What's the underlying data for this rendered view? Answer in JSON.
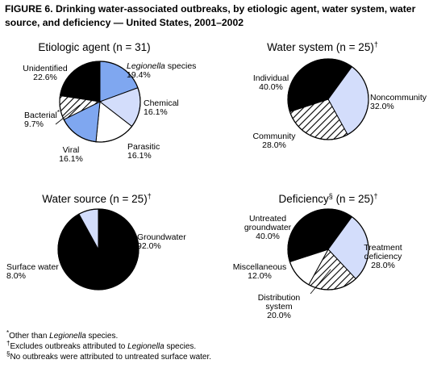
{
  "figure_title": "FIGURE 6. Drinking water-associated outbreaks, by etiologic agent, water system, water source, and deficiency — United States, 2001–2002",
  "colors": {
    "black": "#000000",
    "light_blue": "#d3ddfb",
    "medium_blue": "#7fa7f0",
    "white": "#ffffff",
    "hatch": "#000000"
  },
  "chart_data": [
    {
      "type": "pie",
      "title": "Etiologic agent (n = 31)",
      "title_mark": "",
      "slices": [
        {
          "name": "Legionella species",
          "value": 19.4,
          "label_italic": "Legionella",
          "label_rest": " species",
          "pct": "19.4%",
          "fill": "medium_blue"
        },
        {
          "name": "Chemical",
          "value": 16.1,
          "label": "Chemical",
          "pct": "16.1%",
          "fill": "light_blue"
        },
        {
          "name": "Parasitic",
          "value": 16.1,
          "label": "Parasitic",
          "pct": "16.1%",
          "fill": "white"
        },
        {
          "name": "Viral",
          "value": 16.1,
          "label": "Viral",
          "pct": "16.1%",
          "fill": "medium_blue"
        },
        {
          "name": "Bacterial",
          "value": 9.7,
          "label": "Bacterial",
          "mark": "*",
          "pct": "9.7%",
          "fill": "hatch"
        },
        {
          "name": "Unidentified",
          "value": 22.6,
          "label": "Unidentified",
          "pct": "22.6%",
          "fill": "black"
        }
      ]
    },
    {
      "type": "pie",
      "title": "Water system (n = 25)",
      "title_mark": "†",
      "slices": [
        {
          "name": "Noncommunity",
          "value": 32.0,
          "label": "Noncommunity",
          "pct": "32.0%",
          "fill": "light_blue"
        },
        {
          "name": "Community",
          "value": 28.0,
          "label": "Community",
          "pct": "28.0%",
          "fill": "hatch"
        },
        {
          "name": "Individual",
          "value": 40.0,
          "label": "Individual",
          "pct": "40.0%",
          "fill": "black"
        }
      ]
    },
    {
      "type": "pie",
      "title": "Water source (n = 25)",
      "title_mark": "†",
      "slices": [
        {
          "name": "Groundwater",
          "value": 92.0,
          "label": "Groundwater",
          "pct": "92.0%",
          "fill": "black"
        },
        {
          "name": "Surface water",
          "value": 8.0,
          "label": "Surface water",
          "pct": "8.0%",
          "fill": "light_blue"
        }
      ]
    },
    {
      "type": "pie",
      "title": "Deficiency",
      "title_mark": "§",
      "title_rest": " (n = 25)",
      "title_mark2": "†",
      "slices": [
        {
          "name": "Treatment deficiency",
          "value": 28.0,
          "label": "Treatment deficiency",
          "pct": "28.0%",
          "fill": "light_blue"
        },
        {
          "name": "Distribution system",
          "value": 20.0,
          "label": "Distribution system",
          "pct": "20.0%",
          "fill": "hatch"
        },
        {
          "name": "Miscellaneous",
          "value": 12.0,
          "label": "Miscellaneous",
          "pct": "12.0%",
          "fill": "white"
        },
        {
          "name": "Untreated groundwater",
          "value": 40.0,
          "label": "Untreated groundwater",
          "pct": "40.0%",
          "fill": "black"
        }
      ]
    }
  ],
  "footnotes": {
    "f1_mark": "*",
    "f1_text": "Other than ",
    "f1_italic": "Legionella",
    "f1_end": " species.",
    "f2_mark": "†",
    "f2_text": "Excludes outbreaks attributed to ",
    "f2_italic": "Legionella",
    "f2_end": " species.",
    "f3_mark": "§",
    "f3_text": "No outbreaks were attributed to untreated surface water."
  }
}
